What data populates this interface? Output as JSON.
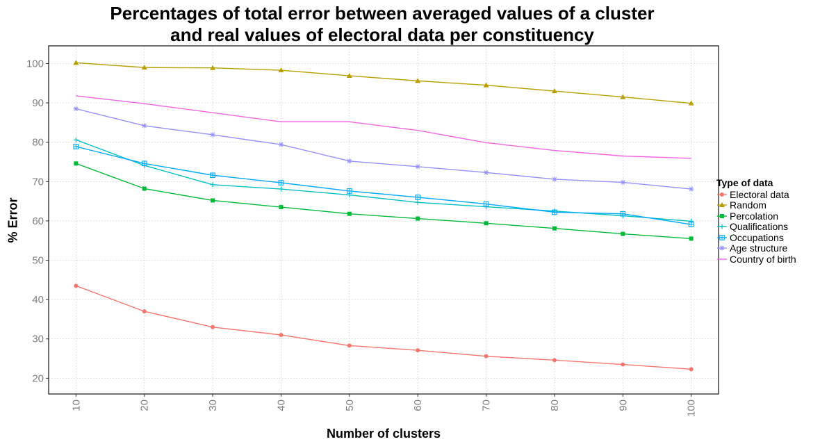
{
  "chart_data": {
    "type": "line",
    "title_lines": [
      "Percentages of total error between averaged values of a cluster",
      "and real values of electoral data per constituency"
    ],
    "xlabel": "Number of clusters",
    "ylabel": "% Error",
    "x": [
      10,
      20,
      30,
      40,
      50,
      60,
      70,
      80,
      90,
      100
    ],
    "x_ticks": [
      "10",
      "20",
      "30",
      "40",
      "50",
      "60",
      "70",
      "80",
      "90",
      "100"
    ],
    "y_ticks": [
      "20",
      "30",
      "40",
      "50",
      "60",
      "70",
      "80",
      "90",
      "100"
    ],
    "xlim": [
      6,
      104
    ],
    "ylim": [
      16,
      104.5
    ],
    "grid": true,
    "legend_title": "Type of data",
    "legend_position": "right",
    "series": [
      {
        "name": "Electoral data",
        "color": "#F8766D",
        "marker": "circle",
        "values": [
          43.5,
          37.0,
          33.0,
          31.0,
          28.3,
          27.1,
          25.6,
          24.6,
          23.5,
          22.3
        ]
      },
      {
        "name": "Random",
        "color": "#B79F00",
        "marker": "triangle",
        "values": [
          100.2,
          99.0,
          98.9,
          98.3,
          96.9,
          95.6,
          94.5,
          93.0,
          91.5,
          89.9
        ]
      },
      {
        "name": "Percolation",
        "color": "#00BA38",
        "marker": "square",
        "values": [
          74.6,
          68.2,
          65.2,
          63.5,
          61.8,
          60.6,
          59.4,
          58.1,
          56.7,
          55.5
        ]
      },
      {
        "name": "Qualifications",
        "color": "#00BFC4",
        "marker": "plus",
        "values": [
          80.6,
          74.1,
          69.2,
          68.1,
          66.6,
          64.7,
          63.6,
          62.5,
          61.3,
          59.9
        ]
      },
      {
        "name": "Occupations",
        "color": "#00A9FF",
        "marker": "boxcross",
        "values": [
          78.9,
          74.6,
          71.6,
          69.7,
          67.6,
          66.0,
          64.3,
          62.2,
          61.8,
          59.1
        ]
      },
      {
        "name": "Age structure",
        "color": "#9590FF",
        "marker": "asterisk",
        "values": [
          88.5,
          84.2,
          81.9,
          79.4,
          75.2,
          73.8,
          72.3,
          70.6,
          69.8,
          68.1
        ]
      },
      {
        "name": "Country of birth",
        "color": "#F564E3",
        "marker": "none",
        "values": [
          91.8,
          89.8,
          87.5,
          85.2,
          85.2,
          83.0,
          79.9,
          77.9,
          76.5,
          75.9
        ]
      }
    ]
  }
}
